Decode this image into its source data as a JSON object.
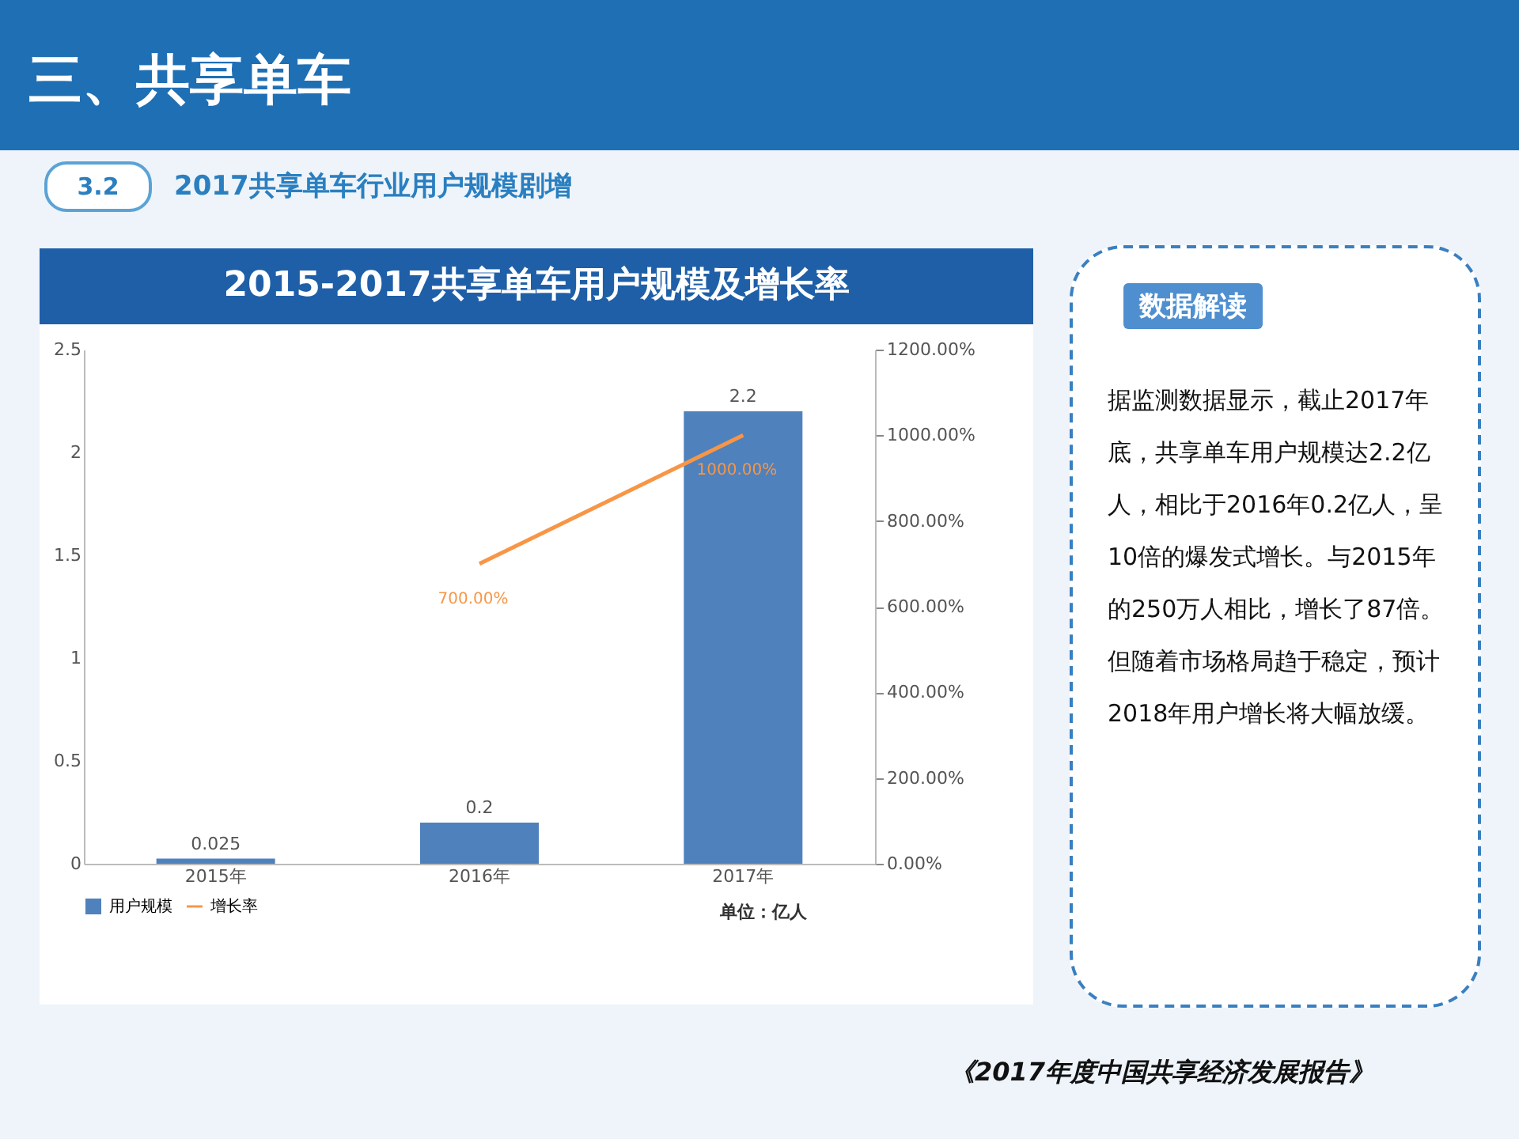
{
  "chart_data": {
    "type": "bar",
    "title": "2015-2017共享单车用户规模及增长率",
    "categories": [
      "2015年",
      "2016年",
      "2017年"
    ],
    "series": [
      {
        "name": "用户规模",
        "color": "#4f81bd",
        "values": [
          0.025,
          0.2,
          2.2
        ],
        "value_labels": [
          "0.025",
          "0.2",
          "2.2"
        ]
      },
      {
        "name": "增长率",
        "type": "line",
        "axis": "y2",
        "color": "#f79646",
        "values": [
          null,
          700,
          1000
        ],
        "value_labels": [
          null,
          "700.00%",
          "1000.00%"
        ]
      }
    ],
    "ylim": [
      0,
      2.5
    ],
    "yticks": [
      0,
      0.5,
      1,
      1.5,
      2,
      2.5
    ],
    "y2lim": [
      0,
      1200
    ],
    "y2ticks": [
      {
        "value": 0,
        "label": "0.00%"
      },
      {
        "value": 200,
        "label": "200.00%"
      },
      {
        "value": 400,
        "label": "400.00%"
      },
      {
        "value": 600,
        "label": "600.00%"
      },
      {
        "value": 800,
        "label": "800.00%"
      },
      {
        "value": 1000,
        "label": "1000.00%"
      },
      {
        "value": 1200,
        "label": "1200.00%"
      }
    ],
    "legend": "bottom",
    "annotations": [
      "三、共享单车",
      "3.2",
      "2017共享单车行业用户规模剧增",
      "单位：亿人",
      "数据解读",
      "据监测数据显示，截止2017年底，共享单车用户规模达2.2亿人，相比于2016年0.2亿人，呈10倍的爆发式增长。与2015年的250万人相比，增长了87倍。但随着市场格局趋于稳定，预计2018年用户增长将大幅放缓。",
      "《2017年度中国共享经济发展报告》"
    ]
  }
}
